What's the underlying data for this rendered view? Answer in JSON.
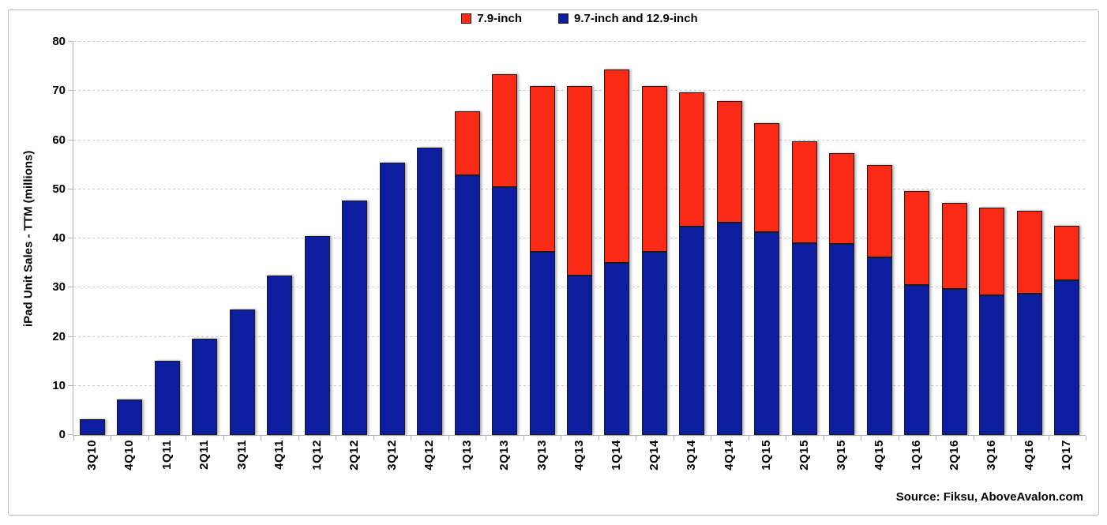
{
  "chart_data": {
    "type": "bar",
    "stacked": true,
    "categories": [
      "3Q10",
      "4Q10",
      "1Q11",
      "2Q11",
      "3Q11",
      "4Q11",
      "1Q12",
      "2Q12",
      "3Q12",
      "4Q12",
      "1Q13",
      "2Q13",
      "3Q13",
      "4Q13",
      "1Q14",
      "2Q14",
      "3Q14",
      "4Q14",
      "1Q15",
      "2Q15",
      "3Q15",
      "4Q15",
      "1Q16",
      "2Q16",
      "3Q16",
      "4Q16",
      "1Q17"
    ],
    "series": [
      {
        "name": "7.9-inch",
        "color": "#fb2a17",
        "values": [
          0,
          0,
          0,
          0,
          0,
          0,
          0,
          0,
          0,
          0,
          13.0,
          23.0,
          33.8,
          38.6,
          39.3,
          33.8,
          27.3,
          24.8,
          22.1,
          20.7,
          18.5,
          18.7,
          19.0,
          17.5,
          17.7,
          16.9,
          11.1
        ]
      },
      {
        "name": "9.7-inch and 12.9-inch",
        "color": "#0c1da0",
        "values": [
          3.2,
          7.2,
          15.1,
          19.6,
          25.5,
          32.4,
          40.5,
          47.7,
          55.4,
          58.4,
          52.8,
          50.4,
          37.2,
          32.4,
          35.0,
          37.2,
          42.4,
          43.2,
          41.3,
          39.0,
          38.8,
          36.2,
          30.6,
          29.7,
          28.5,
          28.8,
          31.5
        ]
      }
    ],
    "stack_order_bottom_to_top": [
      1,
      0
    ],
    "ylabel": "iPad Unit Sales - TTM (millions)",
    "xlabel": "",
    "ylim": [
      0,
      80
    ],
    "yticks": [
      0,
      10,
      20,
      30,
      40,
      50,
      60,
      70,
      80
    ],
    "grid": "horizontal-dotted",
    "legend_position": "top-center",
    "bar_border_color": "#1a1a1a",
    "axis_color": "#b3b3b3",
    "grid_color": "#cbcbcb",
    "source": "Source: Fiksu, AboveAvalon.com"
  }
}
